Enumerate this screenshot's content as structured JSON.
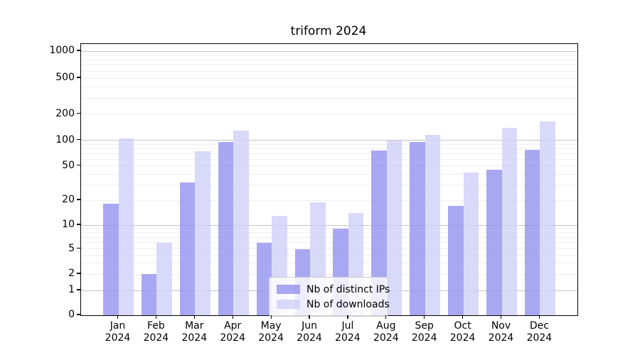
{
  "title": "triform 2024",
  "legend": {
    "items": [
      {
        "label": "Nb of distinct IPs",
        "color": "rgba(146,146,239,0.8)"
      },
      {
        "label": "Nb of downloads",
        "color": "rgba(208,208,249,0.8)"
      }
    ]
  },
  "colors": {
    "bar_ips": "rgba(146,146,239,0.8)",
    "bar_downloads": "rgba(208,208,249,0.8)",
    "grid_major": "#c4c4c4",
    "grid_minor": "#efefef",
    "frame": "#000000"
  },
  "chart_data": {
    "type": "bar",
    "title": "triform 2024",
    "categories": [
      "Jan 2024",
      "Feb 2024",
      "Mar 2024",
      "Apr 2024",
      "May 2024",
      "Jun 2024",
      "Jul 2024",
      "Aug 2024",
      "Sep 2024",
      "Oct 2024",
      "Nov 2024",
      "Dec 2024"
    ],
    "series": [
      {
        "name": "Nb of distinct IPs",
        "values": [
          18,
          2,
          32,
          95,
          6,
          5,
          9,
          76,
          96,
          17,
          45,
          78
        ]
      },
      {
        "name": "Nb of downloads",
        "values": [
          105,
          6,
          75,
          130,
          13,
          19,
          14,
          100,
          116,
          42,
          140,
          165
        ]
      }
    ],
    "y_scale": "asinh-log",
    "y_tick_values": [
      0,
      1,
      2,
      5,
      10,
      20,
      50,
      100,
      200,
      500,
      1000
    ],
    "y_tick_labels": [
      "0",
      "1",
      "2",
      "5",
      "10",
      "20",
      "50",
      "100",
      "200",
      "500",
      "1000"
    ],
    "ylim": [
      0,
      1200
    ],
    "grid": true,
    "legend_position": "lower center"
  }
}
